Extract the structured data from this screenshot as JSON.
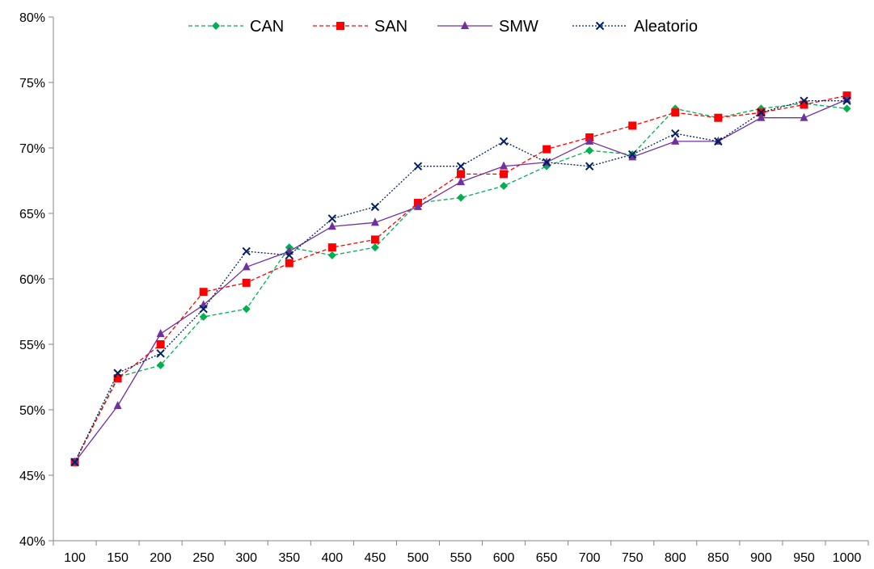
{
  "chart_data": {
    "type": "line",
    "title": "",
    "xlabel": "",
    "ylabel": "",
    "x": [
      100,
      150,
      200,
      250,
      300,
      350,
      400,
      450,
      500,
      550,
      600,
      650,
      700,
      750,
      800,
      850,
      900,
      950,
      1000
    ],
    "x_tick_labels": [
      "100",
      "150",
      "200",
      "250",
      "300",
      "350",
      "400",
      "450",
      "500",
      "550",
      "600",
      "650",
      "700",
      "750",
      "800",
      "850",
      "900",
      "950",
      "1000"
    ],
    "ylim": [
      0.4,
      0.8
    ],
    "y_ticks": [
      0.4,
      0.45,
      0.5,
      0.55,
      0.6,
      0.65,
      0.7,
      0.75,
      0.8
    ],
    "y_tick_labels": [
      "40%",
      "45%",
      "50%",
      "55%",
      "60%",
      "65%",
      "70%",
      "75%",
      "80%"
    ],
    "grid": false,
    "legend_position": "top",
    "series": [
      {
        "name": "CAN",
        "color": "#00b050",
        "marker": "diamond",
        "line_style": "dashed",
        "values": [
          0.46,
          0.525,
          0.534,
          0.571,
          0.577,
          0.624,
          0.618,
          0.624,
          0.658,
          0.662,
          0.671,
          0.686,
          0.698,
          0.695,
          0.73,
          0.723,
          0.73,
          0.734,
          0.73
        ]
      },
      {
        "name": "SAN",
        "color": "#ff0000",
        "marker": "square",
        "line_style": "dashed",
        "values": [
          0.46,
          0.524,
          0.55,
          0.59,
          0.597,
          0.612,
          0.624,
          0.63,
          0.658,
          0.68,
          0.68,
          0.699,
          0.708,
          0.717,
          0.727,
          0.723,
          0.727,
          0.733,
          0.74
        ]
      },
      {
        "name": "SMW",
        "color": "#7030a0",
        "marker": "triangle",
        "line_style": "solid",
        "values": [
          0.46,
          0.503,
          0.558,
          0.58,
          0.609,
          0.621,
          0.64,
          0.643,
          0.655,
          0.674,
          0.686,
          0.689,
          0.705,
          0.693,
          0.705,
          0.705,
          0.723,
          0.723,
          0.737
        ]
      },
      {
        "name": "Aleatorio",
        "color": "#002060",
        "marker": "x",
        "line_style": "dotted",
        "values": [
          0.46,
          0.528,
          0.543,
          0.577,
          0.621,
          0.618,
          0.646,
          0.655,
          0.686,
          0.686,
          0.705,
          0.689,
          0.686,
          0.695,
          0.711,
          0.705,
          0.727,
          0.736,
          0.736
        ]
      }
    ]
  }
}
